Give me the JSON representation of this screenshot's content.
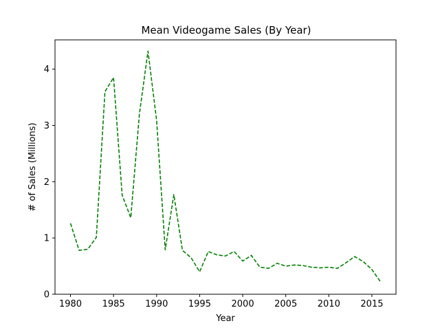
{
  "chart_data": {
    "type": "line",
    "title": "Mean Videogame Sales (By Year)",
    "xlabel": "Year",
    "ylabel": "# of Sales (Millions)",
    "xlim": [
      1978.2,
      2017.8
    ],
    "ylim": [
      0,
      4.52
    ],
    "xticks": [
      1980,
      1985,
      1990,
      1995,
      2000,
      2005,
      2010,
      2015
    ],
    "yticks": [
      0,
      1,
      2,
      3,
      4
    ],
    "grid": false,
    "legend": "none",
    "series": [
      {
        "color": "#008000",
        "linestyle": "dashed",
        "x": [
          1980,
          1981,
          1982,
          1983,
          1984,
          1985,
          1986,
          1987,
          1988,
          1989,
          1990,
          1991,
          1992,
          1993,
          1994,
          1995,
          1996,
          1997,
          1998,
          1999,
          2000,
          2001,
          2002,
          2003,
          2004,
          2005,
          2006,
          2007,
          2008,
          2009,
          2010,
          2011,
          2012,
          2013,
          2014,
          2015,
          2016
        ],
        "values": [
          1.26,
          0.78,
          0.8,
          1.01,
          3.6,
          3.85,
          1.76,
          1.36,
          3.2,
          4.32,
          3.09,
          0.79,
          1.77,
          0.78,
          0.65,
          0.4,
          0.76,
          0.7,
          0.68,
          0.76,
          0.59,
          0.69,
          0.48,
          0.46,
          0.55,
          0.5,
          0.52,
          0.51,
          0.48,
          0.47,
          0.48,
          0.46,
          0.56,
          0.67,
          0.58,
          0.44,
          0.22
        ]
      }
    ]
  }
}
